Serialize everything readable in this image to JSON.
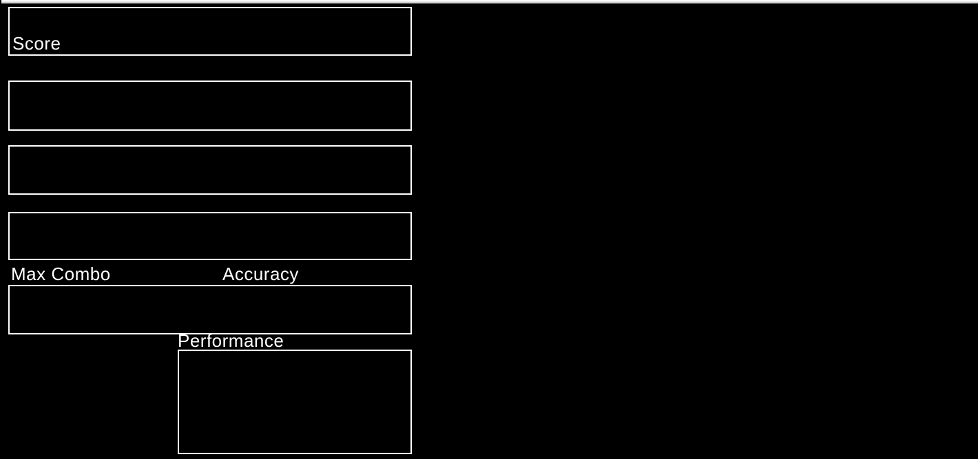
{
  "screen": {
    "name": "results-screen"
  },
  "panels": {
    "score": {
      "label": "Score"
    },
    "stats": {
      "max_combo_label": "Max Combo",
      "accuracy_label": "Accuracy"
    },
    "performance": {
      "label": "Performance"
    }
  },
  "colors": {
    "background": "#000000",
    "panel_border": "#ffffff",
    "label_text": "#ffffff",
    "top_bar": "#ededed"
  }
}
